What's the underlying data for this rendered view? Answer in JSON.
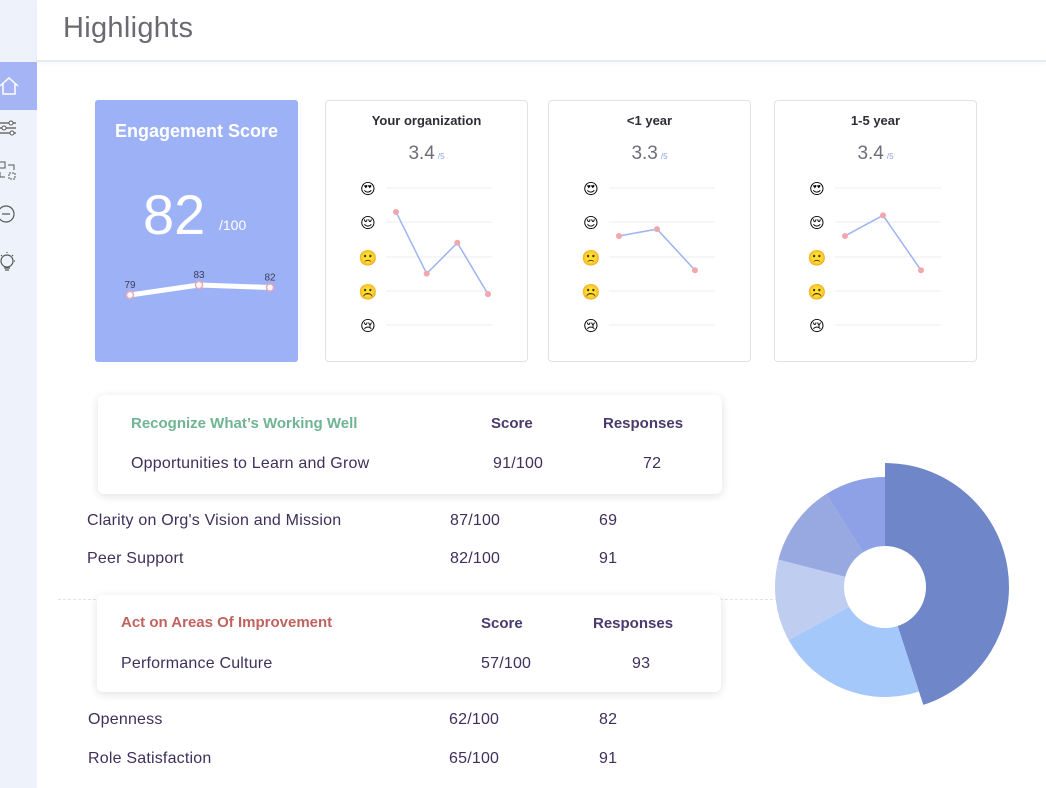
{
  "header": {
    "title": "Highlights"
  },
  "sidebar": {
    "items": [
      {
        "icon": "home-icon",
        "active": true
      },
      {
        "icon": "sliders-icon",
        "active": false
      },
      {
        "icon": "swap-icon",
        "active": false
      },
      {
        "icon": "minus-circle-icon",
        "active": false
      },
      {
        "icon": "lightbulb-icon",
        "active": false
      }
    ]
  },
  "engagement": {
    "title": "Engagement Score",
    "score": "82",
    "max": "/100",
    "trend": [
      {
        "label": "79",
        "value": 79
      },
      {
        "label": "83",
        "value": 83
      },
      {
        "label": "82",
        "value": 82
      }
    ]
  },
  "mini_charts": [
    {
      "title": "Your organization",
      "value": "3.4",
      "suffix": "/5",
      "points": [
        4.3,
        2.5,
        3.4,
        1.9
      ]
    },
    {
      "title": "<1 year",
      "value": "3.3",
      "suffix": "/5",
      "points": [
        3.6,
        3.8,
        2.6
      ]
    },
    {
      "title": "1-5 year",
      "value": "3.4",
      "suffix": "/5",
      "points": [
        3.6,
        4.2,
        2.6
      ]
    }
  ],
  "emoji_scale": [
    "😍",
    "😌",
    "🙁",
    "☹️",
    "😢"
  ],
  "working_well": {
    "title": "Recognize What’s Working Well",
    "score_head": "Score",
    "responses_head": "Responses",
    "rows": [
      {
        "name": "Opportunities to Learn and Grow",
        "score": "91/100",
        "responses": "72"
      },
      {
        "name": "Clarity on Org's Vision and Mission",
        "score": "87/100",
        "responses": "69"
      },
      {
        "name": "Peer Support",
        "score": "82/100",
        "responses": "91"
      }
    ]
  },
  "improvement": {
    "title": "Act on Areas Of Improvement",
    "score_head": "Score",
    "responses_head": "Responses",
    "rows": [
      {
        "name": "Performance Culture",
        "score": "57/100",
        "responses": "93"
      },
      {
        "name": "Openness",
        "score": "62/100",
        "responses": "82"
      },
      {
        "name": "Role Satisfaction",
        "score": "65/100",
        "responses": "91"
      }
    ]
  },
  "chart_data": {
    "type": "pie",
    "values": [
      45,
      22,
      12,
      12,
      9
    ],
    "colors": [
      "#6f87c9",
      "#a5c8fb",
      "#bfcdf1",
      "#97a9e0",
      "#8ea1e6"
    ],
    "donut": true
  },
  "colors": {
    "engagement_bg": "#9db1f7",
    "working_well_title": "#6fb593",
    "improvement_title": "#c0635f",
    "line": "#9db4f2",
    "point": "#f0a7ad"
  }
}
